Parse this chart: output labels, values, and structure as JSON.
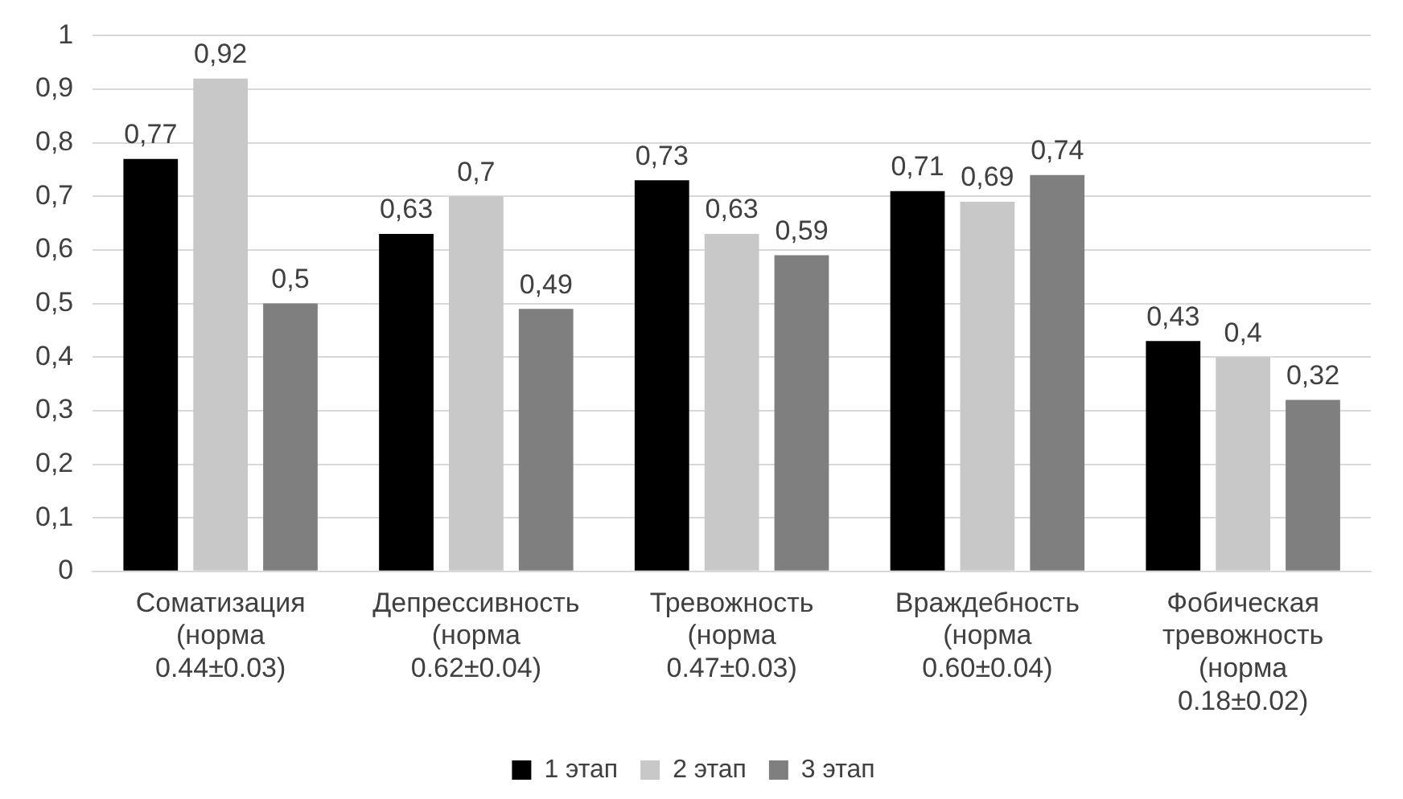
{
  "chart_data": {
    "type": "bar",
    "categories": [
      "Соматизация (норма 0.44±0.03)",
      "Депрессивность (норма 0.62±0.04)",
      "Тревожность (норма 0.47±0.03)",
      "Враждебность (норма 0.60±0.04)",
      "Фобическая тревожность (норма 0.18±0.02)"
    ],
    "series": [
      {
        "name": "1 этап",
        "color": "#000000",
        "values": [
          0.77,
          0.63,
          0.73,
          0.71,
          0.43
        ],
        "value_labels": [
          "0,77",
          "0,63",
          "0,73",
          "0,71",
          "0,43"
        ]
      },
      {
        "name": "2 этап",
        "color": "#c8c8c8",
        "values": [
          0.92,
          0.7,
          0.63,
          0.69,
          0.4
        ],
        "value_labels": [
          "0,92",
          "0,7",
          "0,63",
          "0,69",
          "0,4"
        ]
      },
      {
        "name": "3 этап",
        "color": "#7f7f7f",
        "values": [
          0.5,
          0.49,
          0.59,
          0.74,
          0.32
        ],
        "value_labels": [
          "0,5",
          "0,49",
          "0,59",
          "0,74",
          "0,32"
        ]
      }
    ],
    "ylim": [
      0,
      1
    ],
    "yticks": [
      {
        "value": 0,
        "label": "0"
      },
      {
        "value": 0.1,
        "label": "0,1"
      },
      {
        "value": 0.2,
        "label": "0,2"
      },
      {
        "value": 0.3,
        "label": "0,3"
      },
      {
        "value": 0.4,
        "label": "0,4"
      },
      {
        "value": 0.5,
        "label": "0,5"
      },
      {
        "value": 0.6,
        "label": "0,6"
      },
      {
        "value": 0.7,
        "label": "0,7"
      },
      {
        "value": 0.8,
        "label": "0,8"
      },
      {
        "value": 0.9,
        "label": "0,9"
      },
      {
        "value": 1,
        "label": "1"
      }
    ],
    "grid": "y",
    "legend": "bottom"
  }
}
